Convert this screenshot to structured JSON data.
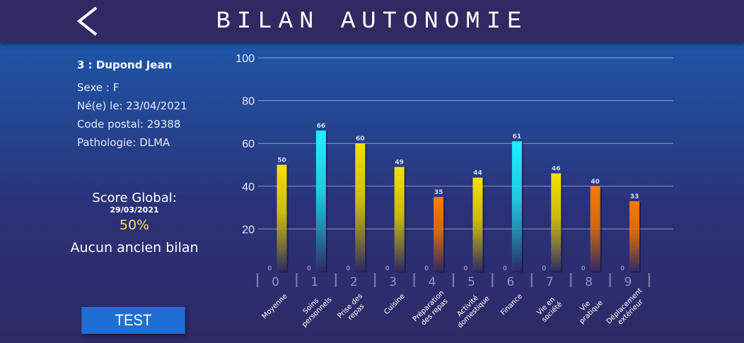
{
  "header": {
    "title": "BILAN AUTONOMIE",
    "back_icon": "chevron-left-icon"
  },
  "patient": {
    "name": "3 : Dupond Jean",
    "sexe": "Sexe : F",
    "naissance": "Né(e) le: 23/04/2021",
    "code_postal": "Code postal: 29388",
    "pathologie": "Pathologie: DLMA"
  },
  "score": {
    "label": "Score Global:",
    "date": "29/03/2021",
    "value": "50%",
    "history": "Aucun ancien bilan"
  },
  "test_button": "TEST",
  "colors": {
    "high": "#1ff0ff",
    "mid": "#f5e000",
    "low": "#ff7a00",
    "score": "#f3e25a",
    "button": "#1d6fd6"
  },
  "chart_data": {
    "type": "bar",
    "ylim": [
      0,
      100
    ],
    "yticks": [
      20,
      40,
      60,
      80,
      100
    ],
    "grid": true,
    "indices": [
      "0",
      "1",
      "2",
      "3",
      "4",
      "5",
      "6",
      "7",
      "8",
      "9"
    ],
    "categories": [
      [
        "Moyenne"
      ],
      [
        "Soins",
        "personnels"
      ],
      [
        "Prise des",
        "repas"
      ],
      [
        "Cuisine"
      ],
      [
        "Préparation",
        "des repas"
      ],
      [
        "Activité",
        "domestique"
      ],
      [
        "Finance"
      ],
      [
        "Vie en",
        "société"
      ],
      [
        "Vie",
        "pratique"
      ],
      [
        "Déplacement",
        "extérieur"
      ]
    ],
    "values": [
      50,
      66,
      60,
      49,
      35,
      44,
      61,
      46,
      40,
      33
    ],
    "base_labels": [
      "0",
      "0",
      "0",
      "0",
      "0",
      "0",
      "0",
      "0",
      "0",
      "0"
    ],
    "bar_colors": [
      "mid",
      "high",
      "mid",
      "mid",
      "low",
      "mid",
      "high",
      "mid",
      "low",
      "low"
    ]
  }
}
